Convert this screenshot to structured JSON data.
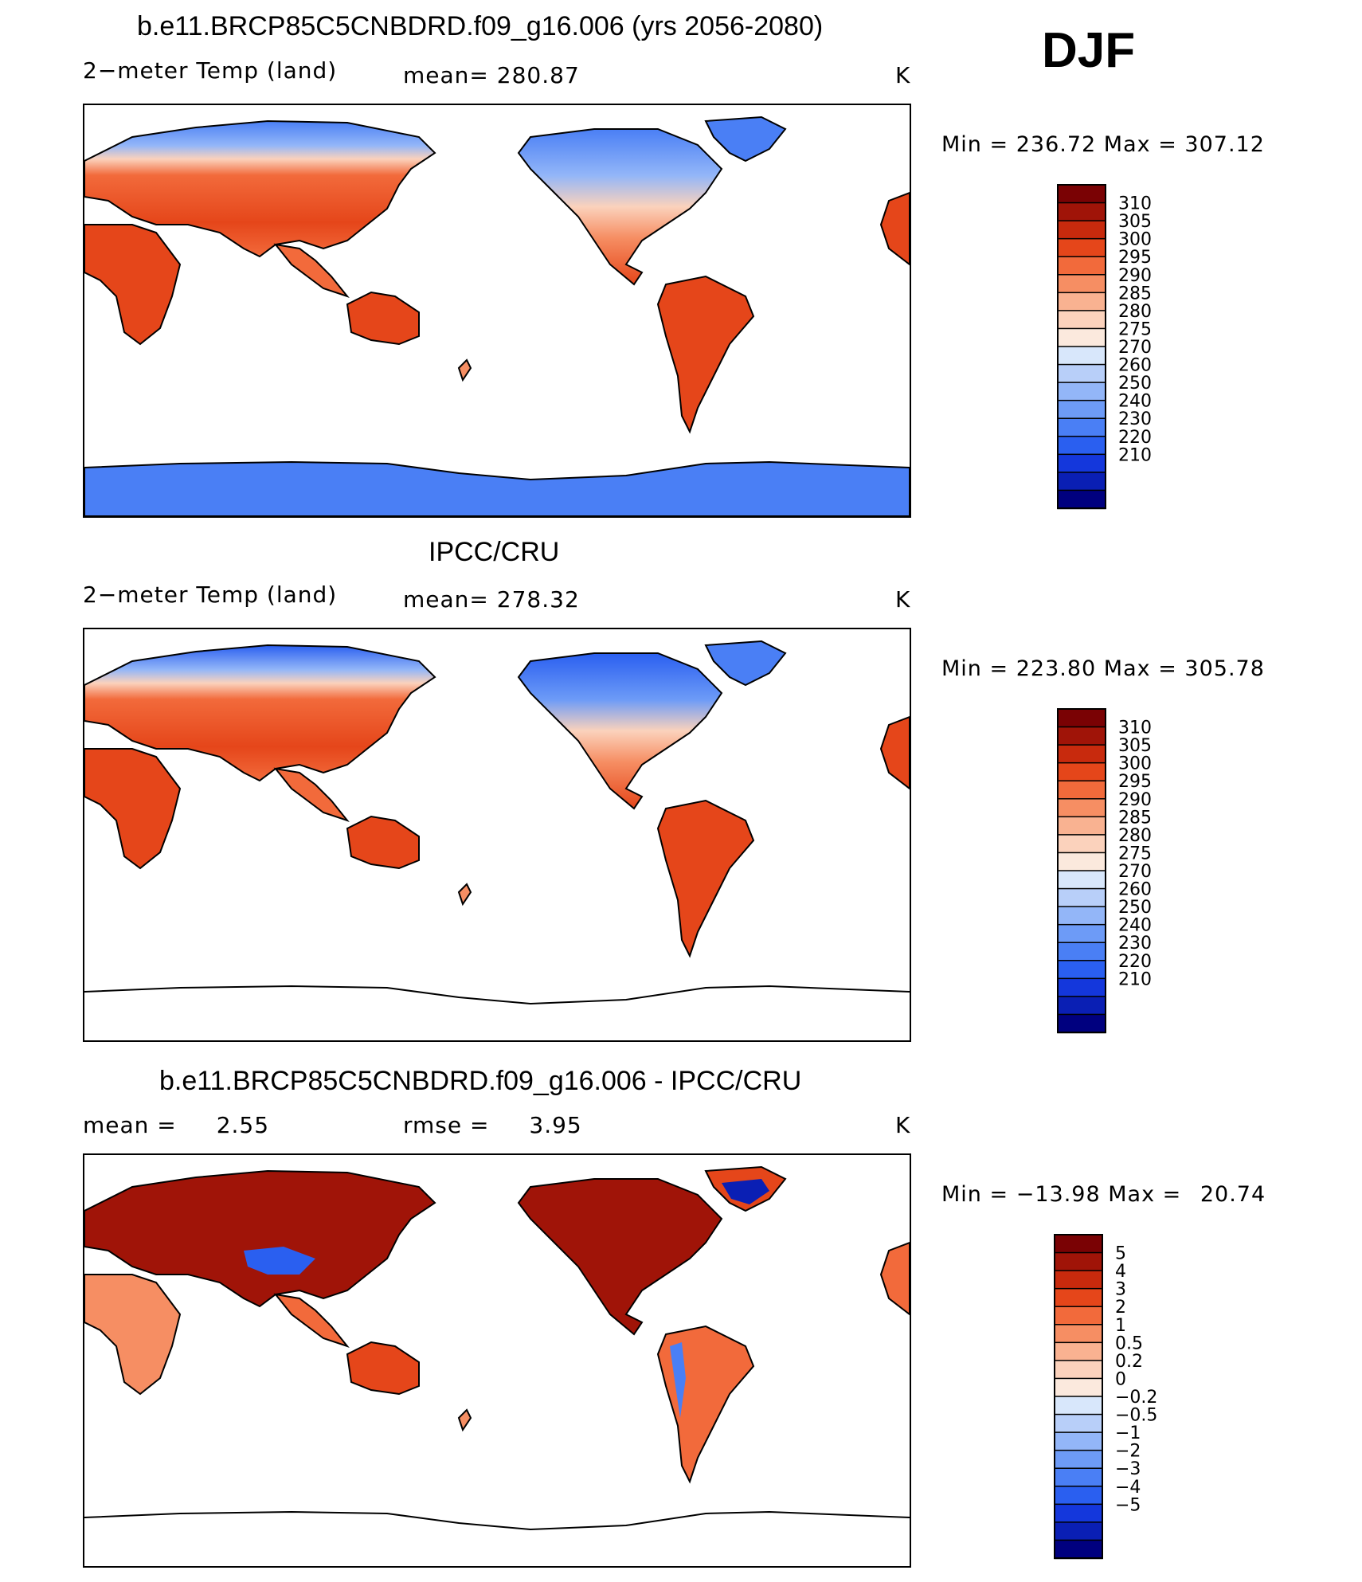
{
  "season": "DJF",
  "colors": {
    "abs_scale": [
      "#00007f",
      "#0a1fb4",
      "#1437dc",
      "#2a5ff0",
      "#4a7ff5",
      "#6d9bf7",
      "#93b6f8",
      "#b8cff9",
      "#d8e7fb",
      "#fbe9dd",
      "#fbd2bc",
      "#f9b291",
      "#f68e63",
      "#f26a3b",
      "#e5461a",
      "#c82a0d",
      "#a01408",
      "#7a0204"
    ],
    "diff_scale": [
      "#00007f",
      "#0a1fb4",
      "#1437dc",
      "#2a5ff0",
      "#4a7ff5",
      "#6d9bf7",
      "#93b6f8",
      "#b8cff9",
      "#d8e7fb",
      "#fbe9dd",
      "#fbd2bc",
      "#f9b291",
      "#f68e63",
      "#f26a3b",
      "#e5461a",
      "#c82a0d",
      "#a01408",
      "#7a0204"
    ]
  },
  "panels": [
    {
      "title": "b.e11.BRCP85C5CNBDRD.f09_g16.006 (yrs 2056-2080)",
      "left_label": "2−meter Temp (land)",
      "center_label": "mean=",
      "center_value": "280.87",
      "right_label": "K",
      "min_label": "Min",
      "min_value": "236.72",
      "max_label": "Max",
      "max_value": "307.12"
    },
    {
      "title": "IPCC/CRU",
      "left_label": "2−meter Temp (land)",
      "center_label": "mean=",
      "center_value": "278.32",
      "right_label": "K",
      "min_label": "Min",
      "min_value": "223.80",
      "max_label": "Max",
      "max_value": "305.78"
    },
    {
      "title": "b.e11.BRCP85C5CNBDRD.f09_g16.006 - IPCC/CRU",
      "left_label": "mean =",
      "left_value": "2.55",
      "center_label": "rmse =",
      "center_value": "3.95",
      "right_label": "K",
      "min_label": "Min",
      "min_value": "−13.98",
      "max_label": "Max",
      "max_value": "20.74"
    }
  ],
  "chart_data": [
    {
      "type": "heatmap",
      "title": "b.e11.BRCP85C5CNBDRD.f09_g16.006 (yrs 2056-2080)",
      "variable": "2−meter Temp (land)",
      "units": "K",
      "mean": 280.87,
      "min": 236.72,
      "max": 307.12,
      "colorbar_levels": [
        "310",
        "305",
        "300",
        "295",
        "290",
        "285",
        "280",
        "275",
        "270",
        "260",
        "250",
        "240",
        "230",
        "220",
        "210"
      ]
    },
    {
      "type": "heatmap",
      "title": "IPCC/CRU",
      "variable": "2−meter Temp (land)",
      "units": "K",
      "mean": 278.32,
      "min": 223.8,
      "max": 305.78,
      "colorbar_levels": [
        "310",
        "305",
        "300",
        "295",
        "290",
        "285",
        "280",
        "275",
        "270",
        "260",
        "250",
        "240",
        "230",
        "220",
        "210"
      ]
    },
    {
      "type": "heatmap",
      "title": "b.e11.BRCP85C5CNBDRD.f09_g16.006 - IPCC/CRU",
      "units": "K",
      "mean": 2.55,
      "rmse": 3.95,
      "min": -13.98,
      "max": 20.74,
      "colorbar_levels": [
        "5",
        "4",
        "3",
        "2",
        "1",
        "0.5",
        "0.2",
        "0",
        "−0.2",
        "−0.5",
        "−1",
        "−2",
        "−3",
        "−4",
        "−5"
      ]
    }
  ]
}
